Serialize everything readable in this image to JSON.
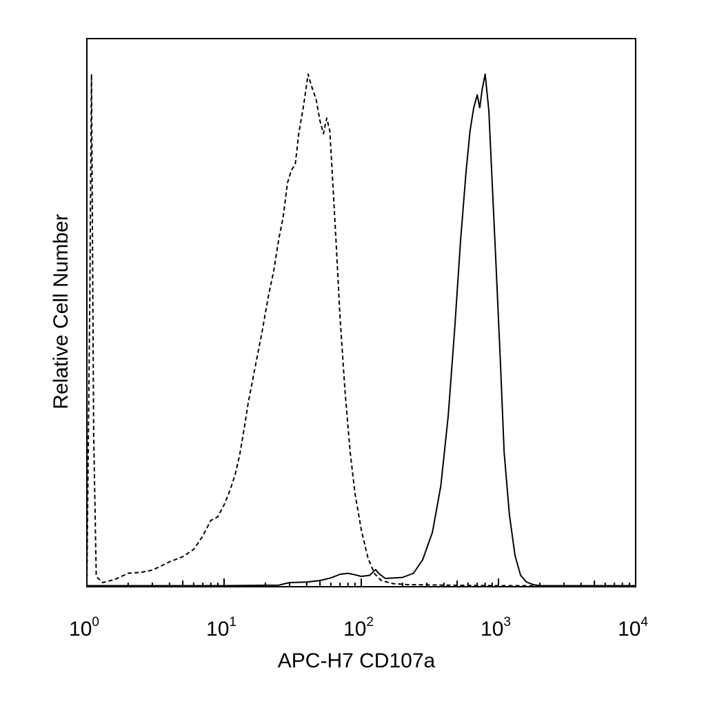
{
  "chart_data": {
    "type": "line",
    "title": "",
    "xlabel": "APC-H7 CD107a",
    "ylabel": "Relative Cell Number",
    "x_scale": "log",
    "xlim": [
      1,
      10000
    ],
    "ylim": [
      0,
      100
    ],
    "grid": false,
    "legend": "none",
    "x_ticks": [
      {
        "value": 1,
        "base": "10",
        "exp": "0"
      },
      {
        "value": 10,
        "base": "10",
        "exp": "1"
      },
      {
        "value": 100,
        "base": "10",
        "exp": "2"
      },
      {
        "value": 1000,
        "base": "10",
        "exp": "3"
      },
      {
        "value": 10000,
        "base": "10",
        "exp": "4"
      }
    ],
    "series": [
      {
        "style": "dashed",
        "color": "#000000",
        "points": [
          [
            1.0,
            0.5
          ],
          [
            1.05,
            55
          ],
          [
            1.08,
            99
          ],
          [
            1.12,
            30
          ],
          [
            1.17,
            2
          ],
          [
            1.3,
            0.8
          ],
          [
            1.6,
            1.4
          ],
          [
            2.0,
            2.6
          ],
          [
            2.5,
            2.8
          ],
          [
            3.0,
            3.2
          ],
          [
            4.0,
            4.8
          ],
          [
            5.0,
            5.8
          ],
          [
            6.0,
            7.2
          ],
          [
            7.0,
            9.8
          ],
          [
            8.0,
            12.8
          ],
          [
            9.0,
            13.5
          ],
          [
            10.0,
            15.8
          ],
          [
            11.0,
            18.5
          ],
          [
            12.0,
            21.5
          ],
          [
            13.0,
            25.5
          ],
          [
            14.0,
            30.5
          ],
          [
            15.0,
            35.5
          ],
          [
            17.0,
            43
          ],
          [
            19.0,
            49.5
          ],
          [
            21.0,
            56
          ],
          [
            23.0,
            61
          ],
          [
            25.0,
            67
          ],
          [
            27.0,
            71.5
          ],
          [
            29.0,
            78
          ],
          [
            31.0,
            80.5
          ],
          [
            33.0,
            81.5
          ],
          [
            35.0,
            87.5
          ],
          [
            38.0,
            93
          ],
          [
            41.0,
            99
          ],
          [
            43.0,
            97
          ],
          [
            47.0,
            94
          ],
          [
            50.0,
            90
          ],
          [
            53.0,
            87.5
          ],
          [
            56.0,
            90.5
          ],
          [
            59.0,
            88
          ],
          [
            62.0,
            78
          ],
          [
            66.0,
            65
          ],
          [
            70.0,
            52
          ],
          [
            76.0,
            38
          ],
          [
            83.0,
            26
          ],
          [
            90.0,
            18
          ],
          [
            100.0,
            11
          ],
          [
            112.0,
            5.5
          ],
          [
            125.0,
            2.5
          ],
          [
            140.0,
            1.2
          ],
          [
            170.0,
            0.6
          ],
          [
            220.0,
            0.4
          ],
          [
            400.0,
            0.3
          ],
          [
            1000.0,
            0.2
          ],
          [
            10000.0,
            0.2
          ]
        ]
      },
      {
        "style": "solid",
        "color": "#000000",
        "points": [
          [
            1.0,
            0.2
          ],
          [
            10.0,
            0.2
          ],
          [
            25.0,
            0.3
          ],
          [
            30.0,
            0.8
          ],
          [
            40.0,
            0.9
          ],
          [
            50.0,
            1.2
          ],
          [
            60.0,
            1.7
          ],
          [
            70.0,
            2.4
          ],
          [
            80.0,
            2.6
          ],
          [
            90.0,
            2.3
          ],
          [
            100.0,
            2.0
          ],
          [
            115.0,
            2.2
          ],
          [
            127.0,
            3.3
          ],
          [
            135.0,
            2.5
          ],
          [
            150.0,
            1.6
          ],
          [
            200.0,
            1.8
          ],
          [
            240.0,
            2.6
          ],
          [
            280.0,
            5.2
          ],
          [
            330.0,
            10.5
          ],
          [
            380.0,
            19.5
          ],
          [
            430.0,
            33
          ],
          [
            480.0,
            50
          ],
          [
            530.0,
            67
          ],
          [
            580.0,
            80
          ],
          [
            620.0,
            88
          ],
          [
            660.0,
            92.5
          ],
          [
            700.0,
            95
          ],
          [
            730.0,
            92.5
          ],
          [
            760.0,
            96
          ],
          [
            800.0,
            99
          ],
          [
            850.0,
            92
          ],
          [
            900.0,
            78
          ],
          [
            960.0,
            62
          ],
          [
            1030.0,
            44
          ],
          [
            1100.0,
            26
          ],
          [
            1200.0,
            14
          ],
          [
            1320.0,
            6
          ],
          [
            1450.0,
            2.2
          ],
          [
            1600.0,
            0.9
          ],
          [
            1800.0,
            0.4
          ],
          [
            2000.0,
            0.2
          ],
          [
            10000.0,
            0.2
          ]
        ]
      }
    ]
  }
}
